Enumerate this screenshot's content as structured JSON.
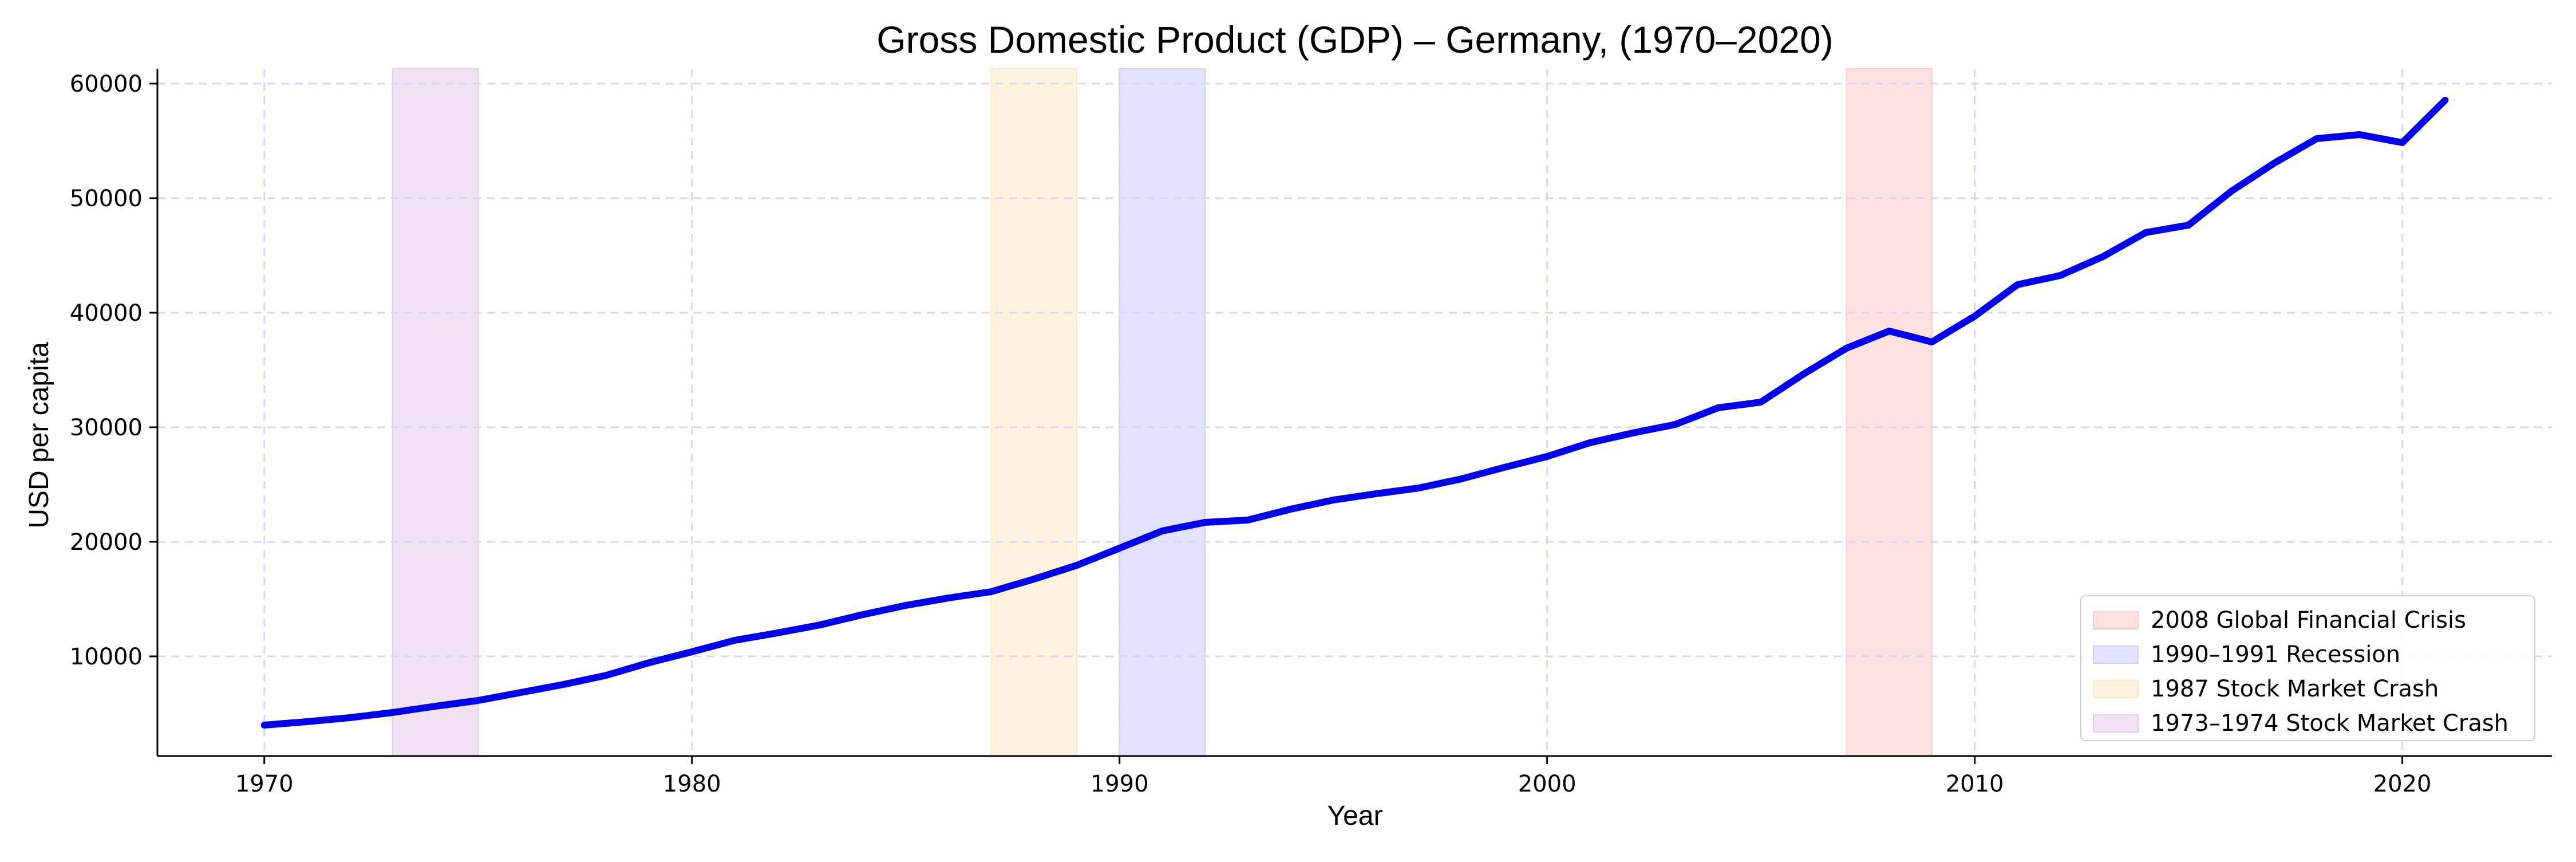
{
  "chart_data": {
    "type": "line",
    "title": "Gross Domestic Product (GDP) – Germany, (1970–2020)",
    "xlabel": "Year",
    "ylabel": "USD per capita",
    "xlim": [
      1967.5,
      2023.5
    ],
    "ylim": [
      1300,
      61300
    ],
    "xticks": [
      1970,
      1980,
      1990,
      2000,
      2010,
      2020
    ],
    "yticks": [
      10000,
      20000,
      30000,
      40000,
      50000,
      60000
    ],
    "grid": true,
    "legend_position": "lower-right",
    "line_color": "#0000ee",
    "series": [
      {
        "x": [
          1970,
          1971,
          1972,
          1973,
          1974,
          1975,
          1976,
          1977,
          1978,
          1979,
          1980,
          1981,
          1982,
          1983,
          1984,
          1985,
          1986,
          1987,
          1988,
          1989,
          1990,
          1991,
          1992,
          1993,
          1994,
          1995,
          1996,
          1997,
          1998,
          1999,
          2000,
          2001,
          2002,
          2003,
          2004,
          2005,
          2006,
          2007,
          2008,
          2009,
          2010,
          2011,
          2012,
          2013,
          2014,
          2015,
          2016,
          2017,
          2018,
          2019,
          2020,
          2021
        ],
        "y": [
          4000,
          4300,
          4650,
          5100,
          5650,
          6150,
          6850,
          7550,
          8350,
          9450,
          10400,
          11400,
          12050,
          12750,
          13650,
          14450,
          15100,
          15650,
          16750,
          17950,
          19450,
          20950,
          21700,
          21900,
          22850,
          23650,
          24200,
          24700,
          25500,
          26500,
          27450,
          28650,
          29500,
          30250,
          31700,
          32200,
          34650,
          36900,
          38400,
          37450,
          39700,
          42450,
          43250,
          44900,
          47000,
          47650,
          50600,
          53050,
          55200,
          55550,
          54850,
          58550
        ]
      }
    ],
    "shaded_regions": [
      {
        "label": "2008 Global Financial Crisis",
        "start": 2007,
        "end": 2009,
        "color": "#ffcccc"
      },
      {
        "label": "1990–1991 Recession",
        "start": 1990,
        "end": 1992,
        "color": "#ccccff"
      },
      {
        "label": "1987 Stock Market Crash",
        "start": 1987,
        "end": 1989,
        "color": "#ffe9c4"
      },
      {
        "label": "1973–1974 Stock Market Crash",
        "start": 1973,
        "end": 1975,
        "color": "#e3cbe8"
      }
    ]
  }
}
